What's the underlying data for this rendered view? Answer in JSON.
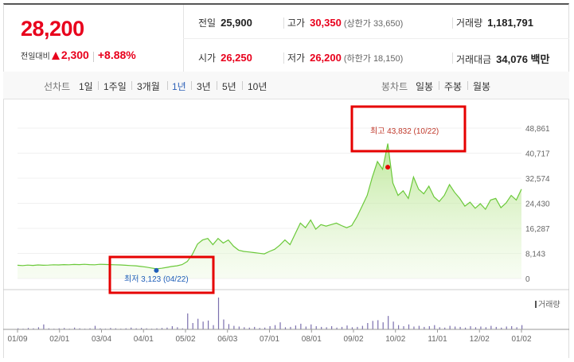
{
  "summary": {
    "price": "28,200",
    "change_label": "전일대비",
    "change_amount": "2,300",
    "change_rate": "+8.88%",
    "prev_close_label": "전일",
    "prev_close": "25,900",
    "high_label": "고가",
    "high": "30,350",
    "upper_limit": "(상한가 33,650)",
    "volume_label": "거래량",
    "volume": "1,181,791",
    "open_label": "시가",
    "open": "26,250",
    "low_label": "저가",
    "low": "26,200",
    "lower_limit": "(하한가 18,150)",
    "amount_label": "거래대금",
    "amount": "34,076 백만"
  },
  "period_bar": {
    "line_chart_label": "선차트",
    "periods": [
      "1일",
      "1주일",
      "3개월",
      "1년",
      "3년",
      "5년",
      "10년"
    ],
    "active_period": "1년",
    "candle_label": "봉차트",
    "candle_options": [
      "일봉",
      "주봉",
      "월봉"
    ]
  },
  "chart_data": {
    "type": "area",
    "y_ticks": [
      "48,861",
      "40,717",
      "32,574",
      "24,430",
      "16,287",
      "8,143",
      "0"
    ],
    "x_ticks": [
      "01/09",
      "02/01",
      "03/04",
      "04/01",
      "05/02",
      "06/03",
      "07/01",
      "08/01",
      "09/02",
      "10/02",
      "11/01",
      "12/02",
      "01/02"
    ],
    "ylim": [
      0,
      48861
    ],
    "max_annotation": "최고 43,832 (10/22)",
    "min_annotation": "최저 3,123 (04/22)",
    "volume_label": "거래량",
    "price_series": [
      4300,
      4200,
      4350,
      4250,
      4400,
      4300,
      4350,
      4450,
      4400,
      4500,
      4450,
      4550,
      4500,
      4600,
      4500,
      4450,
      4600,
      4550,
      4500,
      4450,
      4400,
      4300,
      4200,
      4100,
      3900,
      3700,
      3400,
      3123,
      3300,
      3600,
      3900,
      4100,
      4500,
      5500,
      7800,
      11200,
      12500,
      13000,
      11000,
      13000,
      11500,
      12500,
      10500,
      9200,
      8800,
      8600,
      8400,
      8200,
      8000,
      8800,
      9500,
      10800,
      12500,
      11000,
      14500,
      18000,
      16500,
      19000,
      16000,
      17500,
      17000,
      17500,
      18000,
      17200,
      16500,
      17200,
      20000,
      23500,
      27000,
      33000,
      38000,
      35500,
      43832,
      31000,
      27000,
      28500,
      26000,
      33000,
      29000,
      27500,
      30000,
      26500,
      25000,
      27000,
      30500,
      28000,
      26000,
      23500,
      24800,
      22800,
      24300,
      22500,
      25500,
      26000,
      23000,
      24500,
      27000,
      25500,
      29000
    ],
    "volume_series": [
      3,
      2,
      4,
      3,
      6,
      14,
      3,
      2,
      3,
      4,
      2,
      5,
      3,
      2,
      3,
      10,
      3,
      2,
      4,
      3,
      2,
      3,
      5,
      3,
      4,
      3,
      2,
      3,
      4,
      5,
      9,
      6,
      3,
      45,
      18,
      30,
      22,
      25,
      12,
      90,
      28,
      15,
      10,
      8,
      6,
      5,
      7,
      4,
      5,
      9,
      12,
      20,
      6,
      7,
      11,
      16,
      8,
      14,
      9,
      7,
      6,
      9,
      5,
      7,
      11,
      6,
      7,
      10,
      18,
      24,
      26,
      20,
      38,
      22,
      12,
      9,
      14,
      8,
      10,
      7,
      9,
      12,
      6,
      5,
      10,
      8,
      7,
      5,
      9,
      6,
      8,
      6,
      10,
      7,
      5,
      8,
      9,
      6,
      12
    ]
  }
}
